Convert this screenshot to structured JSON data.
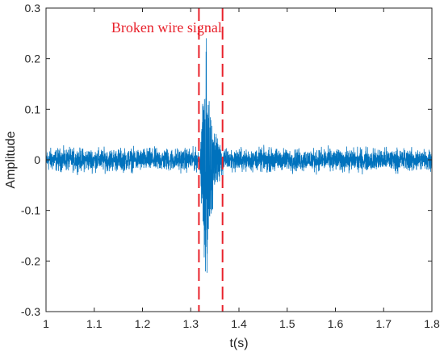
{
  "chart_data": {
    "type": "line",
    "title": "",
    "xlabel": "t(s)",
    "ylabel": "Amplitude",
    "xlim": [
      1,
      1.8
    ],
    "ylim": [
      -0.3,
      0.3
    ],
    "xticks": [
      1,
      1.1,
      1.2,
      1.3,
      1.4,
      1.5,
      1.6,
      1.7,
      1.8
    ],
    "yticks": [
      -0.3,
      -0.2,
      -0.1,
      0,
      0.1,
      0.2,
      0.3
    ],
    "xtick_labels": [
      "1",
      "1.1",
      "1.2",
      "1.3",
      "1.4",
      "1.5",
      "1.6",
      "1.7",
      "1.8"
    ],
    "ytick_labels": [
      "-0.3",
      "-0.2",
      "-0.1",
      "0",
      "0.1",
      "0.2",
      "0.3"
    ],
    "grid": false,
    "series": [
      {
        "color": "#0072BD",
        "baseline_noise_amplitude": 0.02,
        "burst": {
          "start": 1.318,
          "peak": 1.332,
          "end": 1.37,
          "max_amplitude": 0.26,
          "min_amplitude": -0.28
        }
      }
    ],
    "annotations": [
      {
        "text": "Broken wire signal",
        "color": "#e8212b",
        "x": 1.25,
        "y": 0.262
      }
    ],
    "markers": [
      {
        "x": 1.317,
        "style": "dashed",
        "color": "#e8212b"
      },
      {
        "x": 1.366,
        "style": "dashed",
        "color": "#e8212b"
      }
    ]
  }
}
